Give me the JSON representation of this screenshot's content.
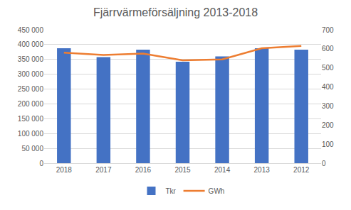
{
  "chart_data": {
    "type": "bar",
    "title": "Fjärrvärmeförsäljning 2013-2018",
    "categories": [
      "2018",
      "2017",
      "2016",
      "2015",
      "2014",
      "2013",
      "2012"
    ],
    "series": [
      {
        "name": "Tkr",
        "type": "bar",
        "color": "#4472c4",
        "values": [
          388000,
          358000,
          383000,
          342000,
          360000,
          388000,
          383000
        ]
      },
      {
        "name": "GWh",
        "type": "line",
        "color": "#ed7d31",
        "axis": "y2",
        "values": [
          580,
          568,
          575,
          540,
          545,
          603,
          615
        ]
      }
    ],
    "ylim": [
      0,
      450000
    ],
    "yticks": [
      0,
      {
        "value": 50000,
        "label": "50 000"
      },
      {
        "value": 100000,
        "label": "100 000"
      },
      {
        "value": 150000,
        "label": "150 000"
      },
      {
        "value": 200000,
        "label": "200 000"
      },
      {
        "value": 250000,
        "label": "250 000"
      },
      {
        "value": 300000,
        "label": "300 000"
      },
      {
        "value": 350000,
        "label": "350 000"
      },
      {
        "value": 400000,
        "label": "400 000"
      },
      {
        "value": 450000,
        "label": "450 000"
      }
    ],
    "y2lim": [
      0,
      700
    ],
    "y2ticks": [
      0,
      100,
      200,
      300,
      400,
      500,
      600,
      700
    ],
    "grid": true,
    "legend": "bottom"
  }
}
